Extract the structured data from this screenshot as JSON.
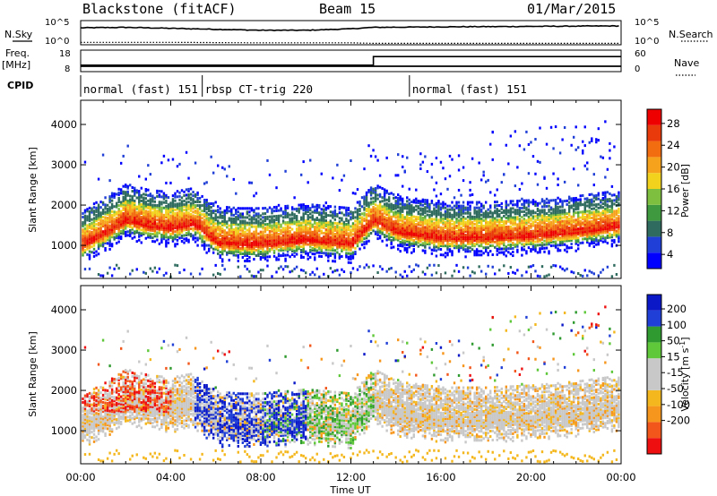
{
  "header": {
    "station": "Blackstone (fitACF)",
    "beam": "Beam 15",
    "date": "01/Mar/2015"
  },
  "side_labels": {
    "nsky": "N.Sky",
    "freq_top": "Freq.",
    "freq_units": "[MHz]",
    "cpid": "CPID",
    "nsearch": "N.Search",
    "nave": "Nave"
  },
  "upper_ticks": {
    "noise_left": [
      "10^5",
      "10^0"
    ],
    "noise_right": [
      "10^5",
      "10^0"
    ],
    "freq_left": [
      "18",
      "8"
    ],
    "nave_right": [
      "60",
      "0"
    ]
  },
  "cpid_modes": [
    {
      "label": "normal (fast) 151",
      "start_h": 0.0,
      "end_h": 5.4
    },
    {
      "label": "rbsp CT-trig 220",
      "start_h": 5.4,
      "end_h": 14.6
    },
    {
      "label": "normal (fast) 151",
      "start_h": 14.6,
      "end_h": 24.0
    }
  ],
  "colorbars": {
    "power": {
      "label": "Power [dB]",
      "ticks": [
        "28",
        "24",
        "20",
        "16",
        "12",
        "8",
        "4"
      ],
      "colors": [
        "#0000ff",
        "#1f3fd6",
        "#2f6b5e",
        "#3f9a3f",
        "#7fbf3f",
        "#f2d21c",
        "#f7a21c",
        "#f26c10",
        "#e83a0a",
        "#ee0000"
      ]
    },
    "velocity": {
      "label": "Velocity [m s^-1]",
      "ticks": [
        "200",
        "100",
        "50",
        "15",
        "-15",
        "-50",
        "-100",
        "-200"
      ],
      "colors": [
        "#ee1010",
        "#f2561a",
        "#f7961c",
        "#f4b81e",
        "#c8c8c8",
        "#c8c8c8",
        "#5fc83a",
        "#2f9a2f",
        "#1f3fd6",
        "#0a18c8"
      ]
    }
  },
  "chart_data": [
    {
      "type": "line",
      "title": "Blackstone (fitACF)  Beam 15  01/Mar/2015",
      "panel": "noise",
      "x_label": "Time UT",
      "x_range_hours": [
        0,
        24
      ],
      "series": [
        {
          "name": "N.Sky",
          "x": [
            0,
            2,
            4,
            6,
            8,
            10,
            12,
            13,
            16,
            20,
            24
          ],
          "values": [
            3.5,
            3.6,
            3.4,
            3.2,
            3.0,
            3.0,
            3.3,
            3.6,
            3.7,
            3.8,
            3.9
          ]
        },
        {
          "name": "N.Search",
          "x": [
            0,
            4,
            8,
            12,
            13,
            16,
            20,
            24
          ],
          "values": [
            0.5,
            0.5,
            0.4,
            0.4,
            0.3,
            0.3,
            0.3,
            0.3
          ]
        }
      ],
      "ylim": [
        0,
        5
      ]
    },
    {
      "type": "line",
      "panel": "frequency_nave",
      "series": [
        {
          "name": "Freq. [MHz]",
          "x": [
            0,
            13,
            13,
            24
          ],
          "values": [
            10.5,
            10.5,
            10.5,
            10.5
          ]
        },
        {
          "name": "Nave",
          "x": [
            0,
            13,
            13,
            24
          ],
          "values": [
            18,
            18,
            42,
            42
          ]
        }
      ],
      "freq_range": [
        8,
        18
      ],
      "nave_range": [
        0,
        60
      ]
    },
    {
      "type": "heatmap",
      "panel": "power",
      "ylabel": "Slant Range [km]",
      "xlabel": "Time UT",
      "x_ticks": [
        "00:00",
        "04:00",
        "08:00",
        "12:00",
        "16:00",
        "20:00",
        "00:00"
      ],
      "y_ticks": [
        1000,
        2000,
        3000,
        4000
      ],
      "ylim": [
        180,
        4600
      ],
      "colorbar_range_db": [
        0,
        30
      ],
      "main_echo_band": {
        "x_hours": [
          0,
          1,
          2,
          3,
          4,
          5,
          6,
          7,
          8,
          9,
          10,
          11,
          12,
          13,
          14,
          16,
          18,
          20,
          22,
          24
        ],
        "slant_range_km": [
          1000,
          1300,
          1650,
          1500,
          1450,
          1550,
          1100,
          1050,
          1050,
          1100,
          1150,
          1100,
          1050,
          1650,
          1350,
          1200,
          1200,
          1250,
          1350,
          1500
        ]
      }
    },
    {
      "type": "heatmap",
      "panel": "velocity",
      "ylabel": "Slant Range [km]",
      "xlabel": "Time UT",
      "x_ticks": [
        "00:00",
        "04:00",
        "08:00",
        "12:00",
        "16:00",
        "20:00",
        "00:00"
      ],
      "y_ticks": [
        1000,
        2000,
        3000,
        4000
      ],
      "ylim": [
        180,
        4600
      ],
      "colorbar_range_ms": [
        -250,
        250
      ]
    }
  ]
}
